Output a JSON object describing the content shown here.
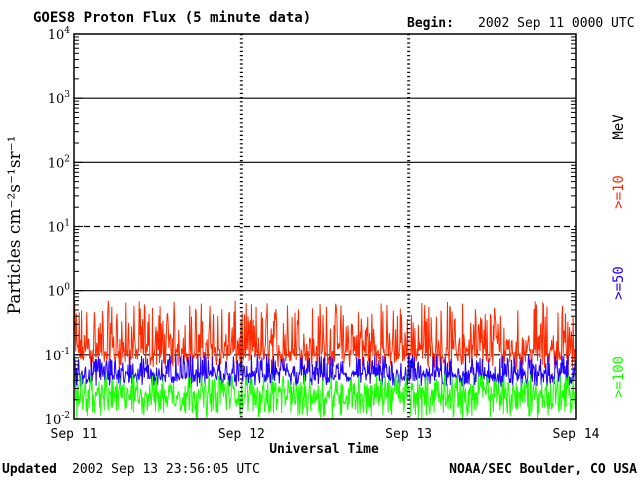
{
  "chart_data": {
    "type": "line",
    "title": "GOES8 Proton Flux (5 minute data)",
    "begin_label": "Begin:",
    "begin_value": "2002 Sep 11 0000 UTC",
    "xlabel": "Universal Time",
    "ylabel": "Particles cm⁻²s⁻¹sr⁻¹",
    "yscale": "log",
    "ylim": [
      0.01,
      10000
    ],
    "xlim_days": [
      0,
      3
    ],
    "x_ticks": [
      "Sep 11",
      "Sep 12",
      "Sep 13",
      "Sep 14"
    ],
    "y_ticks": [
      {
        "base": "10",
        "exp": "-2"
      },
      {
        "base": "10",
        "exp": "-1"
      },
      {
        "base": "10",
        "exp": "0"
      },
      {
        "base": "10",
        "exp": "1"
      },
      {
        "base": "10",
        "exp": "2"
      },
      {
        "base": "10",
        "exp": "3"
      },
      {
        "base": "10",
        "exp": "4"
      }
    ],
    "threshold_levels": [
      0.1,
      10
    ],
    "unit_label": "MeV",
    "series": [
      {
        "name": ">=10",
        "color": "#ff2a00",
        "typical_min": 0.06,
        "typical_max": 0.7,
        "median": 0.12
      },
      {
        "name": ">=50",
        "color": "#2200ff",
        "typical_min": 0.03,
        "typical_max": 0.1,
        "median": 0.05
      },
      {
        "name": ">=100",
        "color": "#19ff00",
        "typical_min": 0.01,
        "typical_max": 0.05,
        "median": 0.025
      }
    ]
  },
  "footer": {
    "updated_label": "Updated",
    "updated_value": "2002 Sep 13 23:56:05 UTC",
    "credit": "NOAA/SEC Boulder, CO USA"
  }
}
